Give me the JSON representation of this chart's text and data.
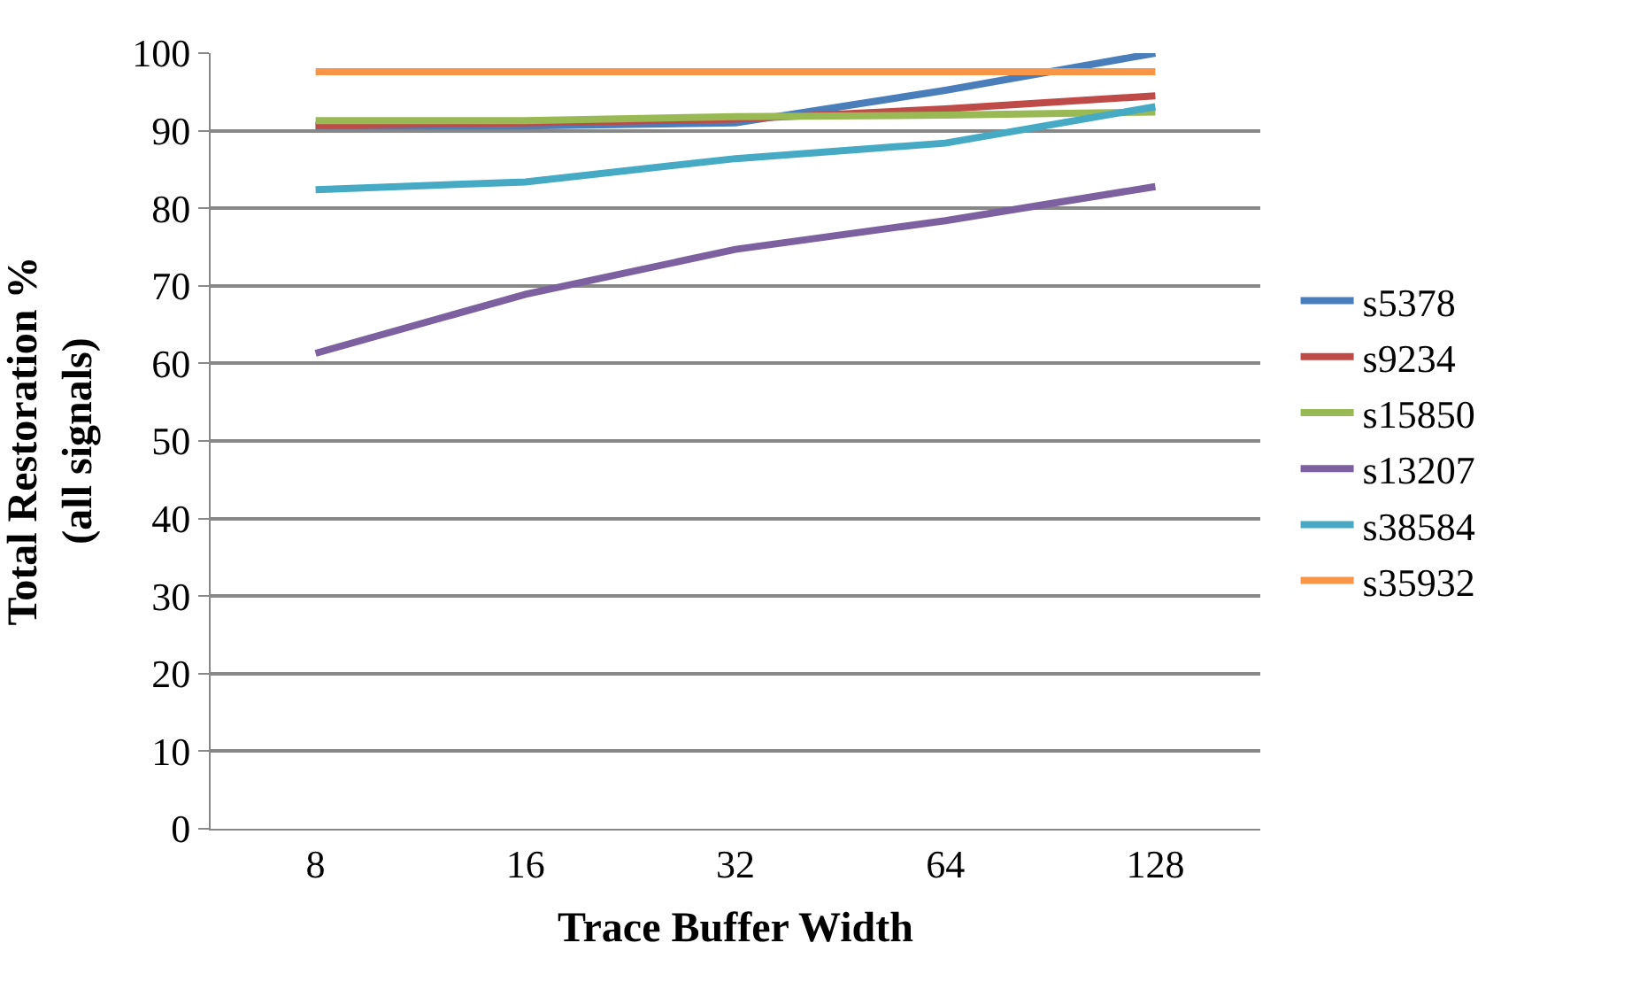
{
  "chart_data": {
    "type": "line",
    "xlabel": "Trace Buffer Width",
    "ylabel": "Total Restoration % (all signals)",
    "categories": [
      "8",
      "16",
      "32",
      "64",
      "128"
    ],
    "series": [
      {
        "name": "s5378",
        "color": "#4a7ebb",
        "values": [
          90.6,
          90.6,
          91,
          95.2,
          100
        ]
      },
      {
        "name": "s9234",
        "color": "#be4b48",
        "values": [
          90.7,
          91,
          91.5,
          92.8,
          94.5
        ]
      },
      {
        "name": "s15850",
        "color": "#98b954",
        "values": [
          91.3,
          91.3,
          91.8,
          92,
          92.4
        ]
      },
      {
        "name": "s13207",
        "color": "#7d60a0",
        "values": [
          61.3,
          68.9,
          74.7,
          78.4,
          82.8
        ]
      },
      {
        "name": "s38584",
        "color": "#46aac5",
        "values": [
          82.4,
          83.4,
          86.4,
          88.4,
          93.1
        ]
      },
      {
        "name": "s35932",
        "color": "#f79646",
        "values": [
          97.6,
          97.6,
          97.6,
          97.6,
          97.6
        ]
      }
    ],
    "ylim": [
      0,
      100
    ],
    "yticks": [
      0,
      10,
      20,
      30,
      40,
      50,
      60,
      70,
      80,
      90,
      100
    ],
    "grid": "y",
    "legend": "right",
    "marker": "none",
    "line_style": "solid"
  }
}
